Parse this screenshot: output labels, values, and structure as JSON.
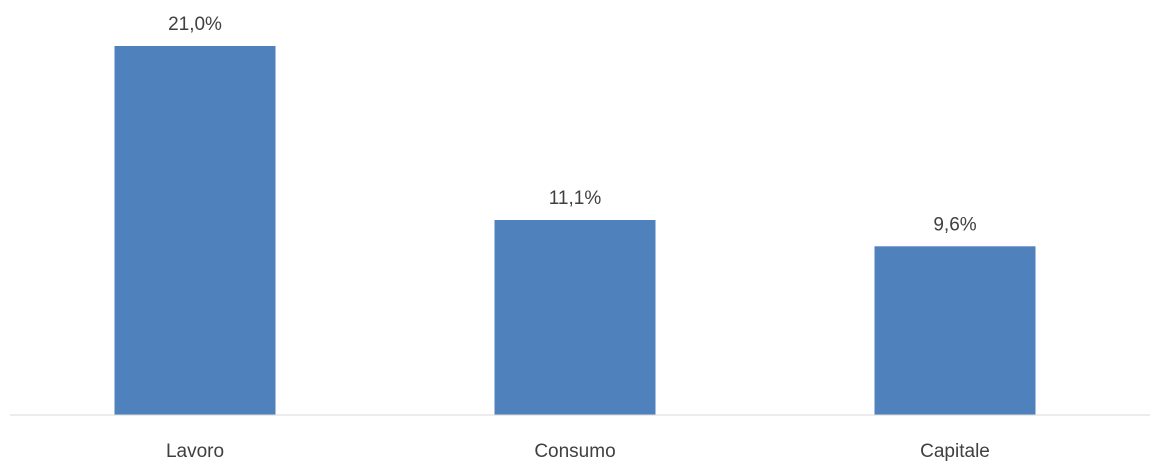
{
  "chart_data": {
    "type": "bar",
    "categories": [
      "Lavoro",
      "Consumo",
      "Capitale"
    ],
    "values": [
      21.0,
      11.1,
      9.6
    ],
    "value_labels": [
      "21,0%",
      "11,1%",
      "9,6%"
    ],
    "unit": "%",
    "title": "",
    "xlabel": "",
    "ylabel": "",
    "ylim": [
      0,
      21.0
    ],
    "grid": false,
    "legend": "none",
    "colors": {
      "bar": "#4f81bd",
      "axis": "#d9d9d9",
      "text": "#404040"
    }
  }
}
